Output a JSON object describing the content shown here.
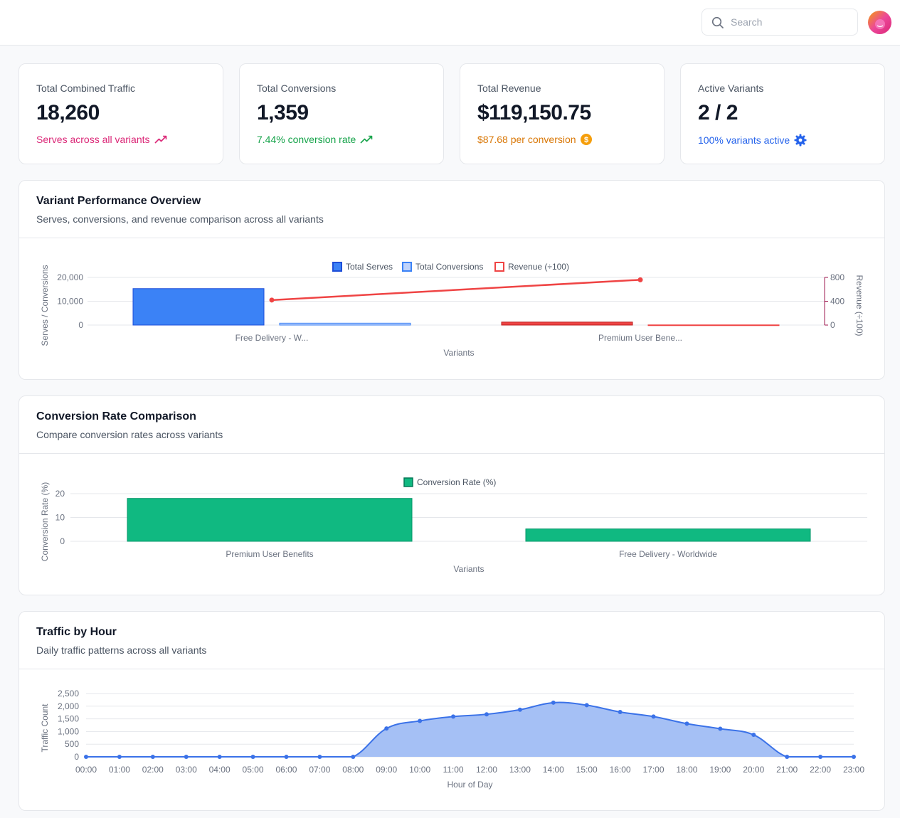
{
  "header": {
    "search_placeholder": "Search"
  },
  "stats": [
    {
      "label": "Total Combined Traffic",
      "value": "18,260",
      "sub": "Serves across all variants",
      "color": "#db2777",
      "icon": "trending-up-icon"
    },
    {
      "label": "Total Conversions",
      "value": "1,359",
      "sub": "7.44% conversion rate",
      "color": "#16a34a",
      "icon": "trending-up-icon"
    },
    {
      "label": "Total Revenue",
      "value": "$119,150.75",
      "sub": "$87.68 per conversion",
      "color": "#d97706",
      "icon": "dollar-coin-icon"
    },
    {
      "label": "Active Variants",
      "value": "2 / 2",
      "sub": "100% variants active",
      "color": "#2563eb",
      "icon": "gear-icon"
    }
  ],
  "panels": {
    "variant_performance": {
      "title": "Variant Performance Overview",
      "subtitle": "Serves, conversions, and revenue comparison across all variants"
    },
    "conversion_rate": {
      "title": "Conversion Rate Comparison",
      "subtitle": "Compare conversion rates across variants"
    },
    "traffic_by_hour": {
      "title": "Traffic by Hour",
      "subtitle": "Daily traffic patterns across all variants"
    }
  },
  "chart_data": [
    {
      "type": "bar",
      "categories": [
        "Free Delivery - W...",
        "Premium User Bene..."
      ],
      "series": [
        {
          "name": "Total Serves",
          "values": [
            15300,
            0
          ],
          "color": "#3b82f6"
        },
        {
          "name": "Total Conversions",
          "values": [
            800,
            0
          ],
          "color": "#93b4f8"
        },
        {
          "name": "Revenue (÷100)",
          "values": [
            420,
            760
          ],
          "color": "#ef4444",
          "axis": "right",
          "bar_values": [
            0,
            50
          ]
        },
        {
          "name": "Revenue (÷100) bar",
          "values": [
            0,
            3
          ]
        }
      ],
      "xlabel": "Variants",
      "ylabel": "Serves / Conversions",
      "ylabel_right": "Revenue (÷100)",
      "ylim": [
        0,
        20000
      ],
      "ylim_right": [
        0,
        800
      ],
      "yticks": [
        "20,000",
        "10,000",
        "0"
      ],
      "yticks_right": [
        "800",
        "400",
        "0"
      ],
      "legend": [
        "Total Serves",
        "Total Conversions",
        "Revenue (÷100)"
      ],
      "legend_placement": "top-center",
      "grid": true
    },
    {
      "type": "bar",
      "categories": [
        "Premium User Benefits",
        "Free Delivery - Worldwide"
      ],
      "series": [
        {
          "name": "Conversion Rate (%)",
          "values": [
            18,
            5.2
          ],
          "color": "#10b981"
        }
      ],
      "xlabel": "Variants",
      "ylabel": "Conversion Rate (%)",
      "ylim": [
        0,
        20
      ],
      "yticks": [
        "20",
        "10",
        "0"
      ],
      "legend": [
        "Conversion Rate (%)"
      ],
      "legend_placement": "top-center",
      "grid": true
    },
    {
      "type": "area",
      "x": [
        "00:00",
        "01:00",
        "02:00",
        "03:00",
        "04:00",
        "05:00",
        "06:00",
        "07:00",
        "08:00",
        "09:00",
        "10:00",
        "11:00",
        "12:00",
        "13:00",
        "14:00",
        "15:00",
        "16:00",
        "17:00",
        "18:00",
        "19:00",
        "20:00",
        "21:00",
        "22:00",
        "23:00"
      ],
      "series": [
        {
          "name": "Traffic Count",
          "values": [
            0,
            0,
            0,
            0,
            0,
            0,
            0,
            0,
            0,
            1120,
            1420,
            1590,
            1680,
            1860,
            2140,
            2040,
            1770,
            1590,
            1310,
            1110,
            870,
            0,
            0,
            0
          ],
          "color": "#3b72e8"
        }
      ],
      "xlabel": "Hour of Day",
      "ylabel": "Traffic Count",
      "ylim": [
        0,
        2500
      ],
      "yticks": [
        "2,500",
        "2,000",
        "1,500",
        "1,000",
        "500",
        "0"
      ],
      "grid": true
    }
  ]
}
